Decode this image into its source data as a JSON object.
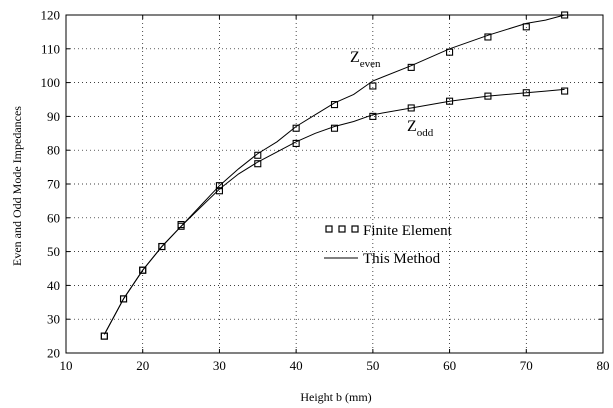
{
  "chart_data": {
    "type": "line",
    "title": "",
    "xlabel": "Height b (mm)",
    "ylabel": "Even and Odd Mode Impedances",
    "xlim": [
      10,
      80
    ],
    "ylim": [
      20,
      120
    ],
    "xticks": [
      10,
      20,
      30,
      40,
      50,
      60,
      70,
      80
    ],
    "yticks": [
      20,
      30,
      40,
      50,
      60,
      70,
      80,
      90,
      100,
      110,
      120
    ],
    "grid": true,
    "grid_style": "dotted",
    "legend": {
      "placement": "center-right",
      "entries": [
        {
          "label": "Finite Element",
          "style": "square-markers"
        },
        {
          "label": "This Method",
          "style": "solid-line"
        }
      ]
    },
    "annotations": [
      {
        "id": "even",
        "main": "Z",
        "sub": "even"
      },
      {
        "id": "odd",
        "main": "Z",
        "sub": "odd"
      }
    ],
    "series": [
      {
        "curve": "even",
        "method": "Finite Element",
        "x": [
          15,
          17.5,
          20,
          22.5,
          25,
          30,
          35,
          40,
          45,
          50,
          55,
          60,
          65,
          70,
          75
        ],
        "y": [
          25,
          36,
          44.5,
          51.5,
          58,
          69.5,
          78.5,
          86.5,
          93.5,
          99,
          104.5,
          109,
          113.5,
          116.5,
          120
        ]
      },
      {
        "curve": "odd",
        "method": "Finite Element",
        "x": [
          15,
          17.5,
          20,
          22.5,
          25,
          30,
          35,
          40,
          45,
          50,
          55,
          60,
          65,
          70,
          75
        ],
        "y": [
          25,
          36,
          44.5,
          51.5,
          57.5,
          68,
          76,
          82,
          86.5,
          90,
          92.5,
          94.5,
          96,
          97,
          97.5
        ]
      },
      {
        "curve": "even",
        "method": "This Method",
        "x": [
          15,
          17.5,
          20,
          22.5,
          25,
          27.5,
          30,
          32.5,
          35,
          37.5,
          40,
          42.5,
          45,
          47.5,
          50,
          55,
          60,
          65,
          70,
          72.5,
          75
        ],
        "y": [
          25.5,
          36,
          44.5,
          51.5,
          57.5,
          63.5,
          69.5,
          74.5,
          79,
          82.5,
          87,
          90.5,
          94,
          96.5,
          100.5,
          105,
          110,
          114,
          117.5,
          118.5,
          120
        ]
      },
      {
        "curve": "odd",
        "method": "This Method",
        "x": [
          15,
          17.5,
          20,
          22.5,
          25,
          27.5,
          30,
          32.5,
          35,
          37.5,
          40,
          42.5,
          45,
          47.5,
          50,
          55,
          60,
          65,
          70,
          72.5,
          75
        ],
        "y": [
          25.5,
          36,
          44.5,
          51.5,
          57.5,
          63,
          68.5,
          73,
          76.5,
          79.5,
          82.5,
          85,
          87,
          88.5,
          90.5,
          92.5,
          94.5,
          96,
          97,
          97.5,
          98
        ]
      }
    ]
  }
}
